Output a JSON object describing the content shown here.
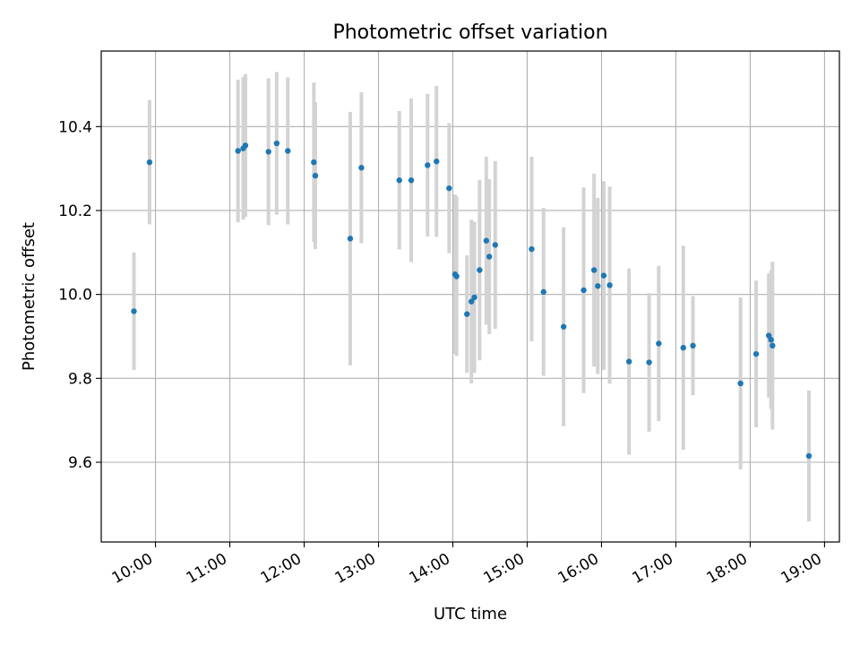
{
  "chart_data": {
    "type": "scatter",
    "title": "Photometric offset variation",
    "xlabel": "UTC time",
    "ylabel": "Photometric offset",
    "x_ticks": [
      "10:00",
      "11:00",
      "12:00",
      "13:00",
      "14:00",
      "15:00",
      "16:00",
      "17:00",
      "18:00",
      "19:00"
    ],
    "y_ticks": [
      "9.6",
      "9.8",
      "10.0",
      "10.2",
      "10.4"
    ],
    "xlim": [
      9.27,
      19.2
    ],
    "ylim": [
      9.41,
      10.58
    ],
    "grid": true,
    "colors": {
      "points": "#1f77b4",
      "errorbars": "#d3d3d3",
      "grid": "#b0b0b0"
    },
    "series": [
      {
        "x": [
          9.71,
          9.92,
          11.11,
          11.18,
          11.21,
          11.52,
          11.63,
          11.78,
          12.13,
          12.15,
          12.62,
          12.77,
          13.28,
          13.44,
          13.66,
          13.78,
          13.95,
          14.03,
          14.05,
          14.19,
          14.25,
          14.29,
          14.36,
          14.45,
          14.49,
          14.57,
          15.06,
          15.22,
          15.49,
          15.76,
          15.9,
          15.95,
          16.03,
          16.11,
          16.37,
          16.64,
          16.77,
          17.1,
          17.23,
          17.87,
          18.08,
          18.25,
          18.28,
          18.3,
          18.79
        ],
        "y": [
          9.96,
          10.315,
          10.342,
          10.348,
          10.355,
          10.34,
          10.36,
          10.342,
          10.315,
          10.283,
          10.133,
          10.302,
          10.272,
          10.272,
          10.308,
          10.317,
          10.253,
          10.048,
          10.043,
          9.953,
          9.983,
          9.993,
          10.058,
          10.128,
          10.09,
          10.118,
          10.108,
          10.006,
          9.923,
          10.01,
          10.058,
          10.02,
          10.045,
          10.022,
          9.84,
          9.838,
          9.883,
          9.873,
          9.878,
          9.788,
          9.858,
          9.902,
          9.892,
          9.878,
          9.615
        ],
        "yerr": [
          0.14,
          0.148,
          0.17,
          0.17,
          0.17,
          0.175,
          0.17,
          0.175,
          0.19,
          0.175,
          0.302,
          0.18,
          0.165,
          0.195,
          0.17,
          0.18,
          0.155,
          0.19,
          0.19,
          0.14,
          0.195,
          0.18,
          0.215,
          0.2,
          0.185,
          0.2,
          0.22,
          0.2,
          0.237,
          0.245,
          0.23,
          0.21,
          0.225,
          0.235,
          0.222,
          0.165,
          0.185,
          0.243,
          0.118,
          0.205,
          0.175,
          0.148,
          0.165,
          0.2,
          0.156
        ]
      }
    ]
  }
}
